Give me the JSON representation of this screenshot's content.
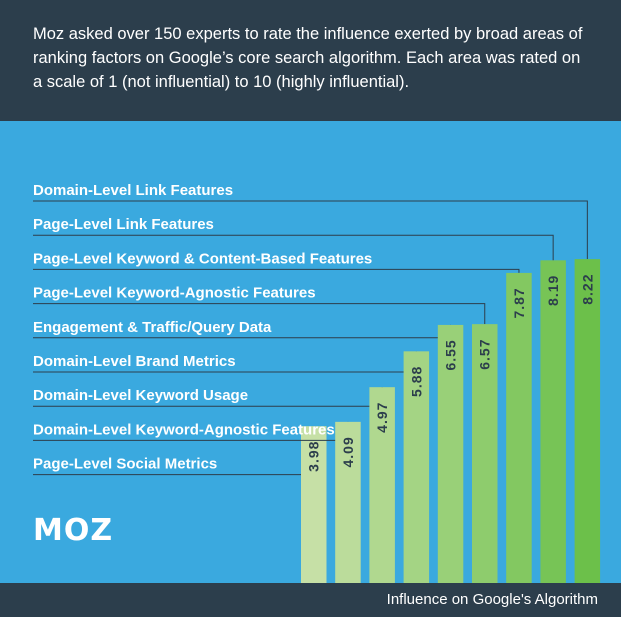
{
  "intro": "Moz asked over 150 experts to rate the influence exerted by broad areas of ranking factors on Google’s core search algorithm. Each area was rated on a scale of 1 (not influential) to 10 (highly influential).",
  "logo": "MOZ",
  "footer_label": "Influence on Google's Algorithm",
  "colors": {
    "header_bg": "#2c3e4c",
    "background": "#3aa9df",
    "bar_light": "#c6e0a6",
    "bar_dark": "#6cc04a",
    "value_text": "#2c3e4c"
  },
  "chart_data": {
    "type": "bar",
    "orientation": "vertical",
    "xlabel": "Influence on Google's Algorithm",
    "ylim": [
      0,
      10
    ],
    "categories": [
      "Page-Level Social Metrics",
      "Domain-Level Keyword-Agnostic Features",
      "Domain-Level Keyword Usage",
      "Domain-Level Brand Metrics",
      "Engagement & Traffic/Query Data",
      "Page-Level Keyword-Agnostic Features",
      "Page-Level Keyword & Content-Based Features",
      "Page-Level Link Features",
      "Domain-Level Link Features"
    ],
    "values": [
      3.98,
      4.09,
      4.97,
      5.88,
      6.55,
      6.57,
      7.87,
      8.19,
      8.22
    ],
    "value_labels": [
      "3.98",
      "4.09",
      "4.97",
      "5.88",
      "6.55",
      "6.57",
      "7.87",
      "8.19",
      "8.22"
    ]
  }
}
